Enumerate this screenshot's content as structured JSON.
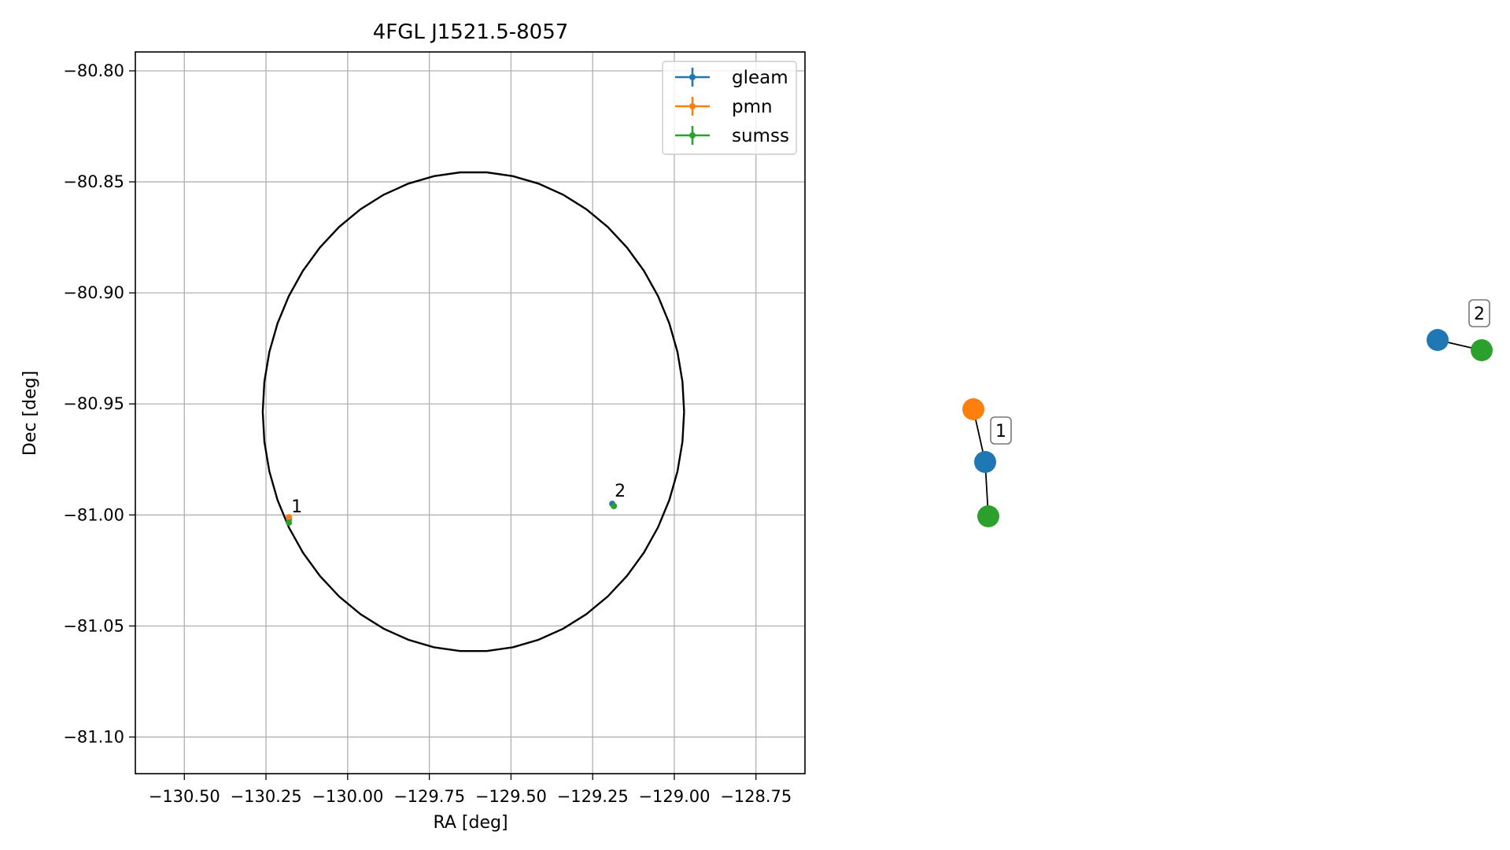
{
  "chart_data": [
    {
      "type": "scatter",
      "title": "4FGL J1521.5-8057",
      "xlabel": "RA [deg]",
      "ylabel": "Dec [deg]",
      "xlim": [
        -130.65,
        -128.6
      ],
      "ylim": [
        -81.1165,
        -80.7915
      ],
      "xticks": [
        -130.5,
        -130.25,
        -130.0,
        -129.75,
        -129.5,
        -129.25,
        -129.0,
        -128.75
      ],
      "xtick_labels": [
        "−130.50",
        "−130.25",
        "−130.00",
        "−129.75",
        "−129.50",
        "−129.25",
        "−129.00",
        "−128.75"
      ],
      "yticks": [
        -80.8,
        -80.85,
        -80.9,
        -80.95,
        -81.0,
        -81.05,
        -81.1
      ],
      "ytick_labels": [
        "−80.80",
        "−80.85",
        "−80.90",
        "−80.95",
        "−81.00",
        "−81.05",
        "−81.10"
      ],
      "grid": true,
      "legend": {
        "position": "top-right",
        "entries": [
          "gleam",
          "pmn",
          "sumss"
        ]
      },
      "series": [
        {
          "name": "gleam",
          "color": "#1f77b4",
          "points": [
            [
              -130.18,
              -81.002
            ],
            [
              -129.19,
              -80.995
            ]
          ]
        },
        {
          "name": "pmn",
          "color": "#ff7f0e",
          "points": [
            [
              -130.18,
              -81.001
            ]
          ]
        },
        {
          "name": "sumss",
          "color": "#2ca02c",
          "points": [
            [
              -130.18,
              -81.0035
            ],
            [
              -129.185,
              -80.996
            ]
          ]
        }
      ],
      "ellipse": {
        "center": [
          -129.615,
          -80.9535
        ],
        "ra_semi_axis": 0.645,
        "dec_semi_axis": 0.108,
        "color": "#000000"
      },
      "annotations": [
        {
          "text": "1",
          "x": -130.18,
          "y": -81.002
        },
        {
          "text": "2",
          "x": -129.19,
          "y": -80.995
        }
      ]
    },
    {
      "type": "network",
      "nodes": [
        {
          "id": "pmn-1",
          "group": "pmn",
          "color": "#ff7f0e"
        },
        {
          "id": "gleam-1",
          "group": "gleam",
          "color": "#1f77b4"
        },
        {
          "id": "sumss-1",
          "group": "sumss",
          "color": "#2ca02c"
        },
        {
          "id": "gleam-2",
          "group": "gleam",
          "color": "#1f77b4"
        },
        {
          "id": "sumss-2",
          "group": "sumss",
          "color": "#2ca02c"
        }
      ],
      "edges": [
        [
          "pmn-1",
          "gleam-1"
        ],
        [
          "gleam-1",
          "sumss-1"
        ],
        [
          "gleam-2",
          "sumss-2"
        ]
      ],
      "labels": [
        {
          "text": "1",
          "node": "gleam-1"
        },
        {
          "text": "2",
          "node": "gleam-2"
        }
      ]
    }
  ]
}
